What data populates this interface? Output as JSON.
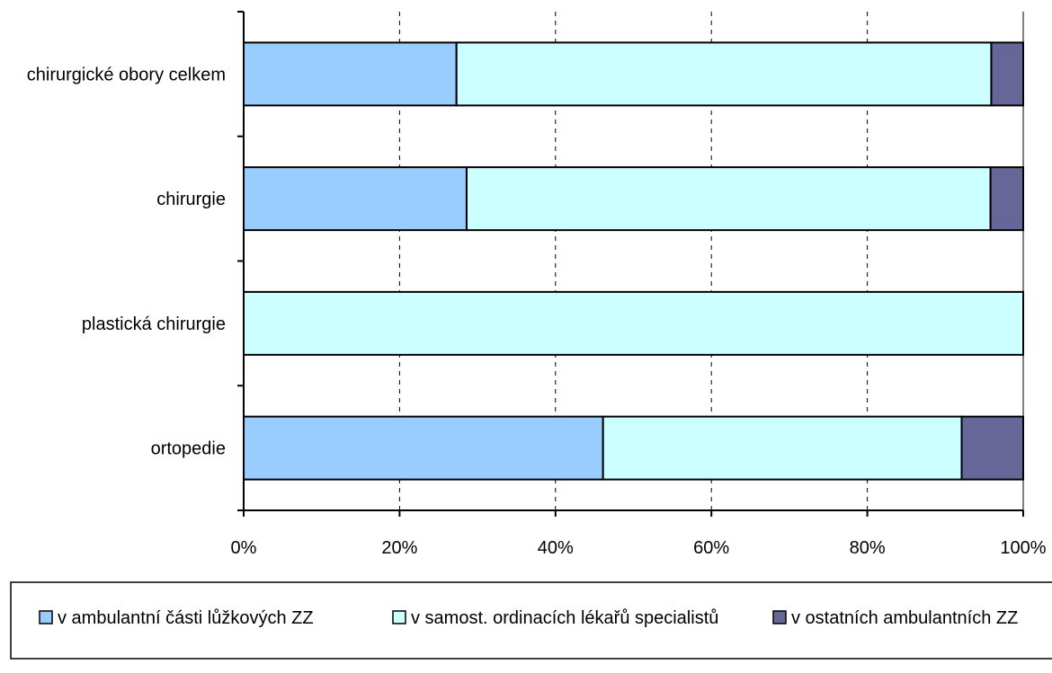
{
  "chart_data": {
    "type": "bar",
    "orientation": "horizontal",
    "stacked": "percent",
    "categories": [
      "chirurgické obory celkem",
      "chirurgie",
      "plastická chirurgie",
      "ortopedie"
    ],
    "series": [
      {
        "name": "v ambulantní části lůžkových ZZ",
        "color": "#99CCFF",
        "values": [
          27.3,
          28.6,
          0,
          46.1
        ]
      },
      {
        "name": "v samost. ordinacích lékařů specialistů",
        "color": "#CCFFFF",
        "values": [
          68.6,
          67.2,
          100,
          46.0
        ]
      },
      {
        "name": "v ostatních ambulantních ZZ",
        "color": "#666699",
        "values": [
          4.1,
          4.2,
          0,
          7.9
        ]
      }
    ],
    "xlim": [
      0,
      100
    ],
    "xticks": [
      "0%",
      "20%",
      "40%",
      "60%",
      "80%",
      "100%"
    ],
    "grid": "vertical-dashed",
    "legend": "bottom"
  }
}
